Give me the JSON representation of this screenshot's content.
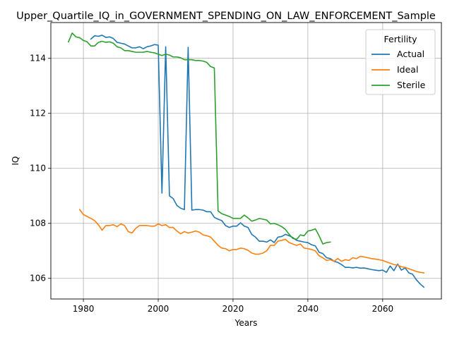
{
  "chart_data": {
    "type": "line",
    "title": "Upper_Quartile_IQ_in_GOVERNMENT_SPENDING_ON_LAW_ENFORCEMENT_Sample",
    "xlabel": "Years",
    "ylabel": "IQ",
    "xlim": [
      1971.3,
      2075.7
    ],
    "ylim": [
      105.25,
      115.3
    ],
    "x_ticks": [
      1980,
      2000,
      2020,
      2040,
      2060
    ],
    "y_ticks": [
      106,
      108,
      110,
      112,
      114
    ],
    "grid": true,
    "legend": {
      "title": "Fertility",
      "position": "top-right"
    },
    "series": [
      {
        "name": "Actual",
        "color": "#1f77b4",
        "points": [
          [
            1982,
            114.7
          ],
          [
            1983,
            114.82
          ],
          [
            1984,
            114.8
          ],
          [
            1985,
            114.84
          ],
          [
            1986,
            114.76
          ],
          [
            1987,
            114.78
          ],
          [
            1988,
            114.72
          ],
          [
            1989,
            114.58
          ],
          [
            1990,
            114.55
          ],
          [
            1991,
            114.52
          ],
          [
            1992,
            114.45
          ],
          [
            1993,
            114.38
          ],
          [
            1994,
            114.38
          ],
          [
            1995,
            114.42
          ],
          [
            1996,
            114.35
          ],
          [
            1997,
            114.42
          ],
          [
            1998,
            114.45
          ],
          [
            1999,
            114.5
          ],
          [
            2000,
            114.48
          ],
          [
            2001,
            109.1
          ],
          [
            2002,
            114.42
          ],
          [
            2003,
            109.0
          ],
          [
            2004,
            108.9
          ],
          [
            2005,
            108.65
          ],
          [
            2006,
            108.55
          ],
          [
            2007,
            108.5
          ],
          [
            2008,
            114.4
          ],
          [
            2009,
            108.48
          ],
          [
            2010,
            108.5
          ],
          [
            2011,
            108.5
          ],
          [
            2012,
            108.48
          ],
          [
            2013,
            108.42
          ],
          [
            2014,
            108.42
          ],
          [
            2015,
            108.22
          ],
          [
            2016,
            108.15
          ],
          [
            2017,
            108.1
          ],
          [
            2018,
            107.92
          ],
          [
            2019,
            107.85
          ],
          [
            2020,
            107.9
          ],
          [
            2021,
            107.9
          ],
          [
            2022,
            108.02
          ],
          [
            2023,
            107.9
          ],
          [
            2024,
            107.85
          ],
          [
            2025,
            107.6
          ],
          [
            2026,
            107.5
          ],
          [
            2027,
            107.35
          ],
          [
            2028,
            107.35
          ],
          [
            2029,
            107.32
          ],
          [
            2030,
            107.4
          ],
          [
            2031,
            107.3
          ],
          [
            2032,
            107.5
          ],
          [
            2033,
            107.52
          ],
          [
            2034,
            107.6
          ],
          [
            2035,
            107.55
          ],
          [
            2036,
            107.48
          ],
          [
            2037,
            107.38
          ],
          [
            2038,
            107.35
          ],
          [
            2039,
            107.32
          ],
          [
            2040,
            107.3
          ],
          [
            2041,
            107.22
          ],
          [
            2042,
            107.18
          ],
          [
            2043,
            106.95
          ],
          [
            2044,
            106.9
          ],
          [
            2045,
            106.75
          ],
          [
            2046,
            106.72
          ],
          [
            2047,
            106.62
          ],
          [
            2048,
            106.58
          ],
          [
            2049,
            106.5
          ],
          [
            2050,
            106.4
          ],
          [
            2051,
            106.4
          ],
          [
            2052,
            106.38
          ],
          [
            2053,
            106.4
          ],
          [
            2054,
            106.37
          ],
          [
            2055,
            106.38
          ],
          [
            2056,
            106.35
          ],
          [
            2057,
            106.32
          ],
          [
            2058,
            106.3
          ],
          [
            2059,
            106.28
          ],
          [
            2060,
            106.3
          ],
          [
            2061,
            106.22
          ],
          [
            2062,
            106.45
          ],
          [
            2063,
            106.28
          ],
          [
            2064,
            106.52
          ],
          [
            2065,
            106.3
          ],
          [
            2066,
            106.38
          ],
          [
            2067,
            106.2
          ],
          [
            2068,
            106.15
          ],
          [
            2069,
            105.95
          ],
          [
            2070,
            105.8
          ],
          [
            2071,
            105.68
          ]
        ]
      },
      {
        "name": "Ideal",
        "color": "#ff7f0e",
        "points": [
          [
            1979,
            108.5
          ],
          [
            1980,
            108.32
          ],
          [
            1981,
            108.25
          ],
          [
            1982,
            108.18
          ],
          [
            1983,
            108.1
          ],
          [
            1984,
            107.95
          ],
          [
            1985,
            107.75
          ],
          [
            1986,
            107.92
          ],
          [
            1987,
            107.92
          ],
          [
            1988,
            107.95
          ],
          [
            1989,
            107.88
          ],
          [
            1990,
            107.98
          ],
          [
            1991,
            107.92
          ],
          [
            1992,
            107.7
          ],
          [
            1993,
            107.65
          ],
          [
            1994,
            107.82
          ],
          [
            1995,
            107.92
          ],
          [
            1996,
            107.92
          ],
          [
            1997,
            107.92
          ],
          [
            1998,
            107.9
          ],
          [
            1999,
            107.9
          ],
          [
            2000,
            107.98
          ],
          [
            2001,
            107.92
          ],
          [
            2002,
            107.95
          ],
          [
            2003,
            107.85
          ],
          [
            2004,
            107.85
          ],
          [
            2005,
            107.72
          ],
          [
            2006,
            107.62
          ],
          [
            2007,
            107.7
          ],
          [
            2008,
            107.65
          ],
          [
            2009,
            107.68
          ],
          [
            2010,
            107.72
          ],
          [
            2011,
            107.68
          ],
          [
            2012,
            107.58
          ],
          [
            2013,
            107.55
          ],
          [
            2014,
            107.5
          ],
          [
            2015,
            107.35
          ],
          [
            2016,
            107.2
          ],
          [
            2017,
            107.1
          ],
          [
            2018,
            107.08
          ],
          [
            2019,
            107.0
          ],
          [
            2020,
            107.05
          ],
          [
            2021,
            107.05
          ],
          [
            2022,
            107.1
          ],
          [
            2023,
            107.08
          ],
          [
            2024,
            107.02
          ],
          [
            2025,
            106.92
          ],
          [
            2026,
            106.88
          ],
          [
            2027,
            106.88
          ],
          [
            2028,
            106.92
          ],
          [
            2029,
            107.0
          ],
          [
            2030,
            107.2
          ],
          [
            2031,
            107.2
          ],
          [
            2032,
            107.35
          ],
          [
            2033,
            107.38
          ],
          [
            2034,
            107.42
          ],
          [
            2035,
            107.3
          ],
          [
            2036,
            107.25
          ],
          [
            2037,
            107.2
          ],
          [
            2038,
            107.25
          ],
          [
            2039,
            107.1
          ],
          [
            2040,
            107.08
          ],
          [
            2041,
            107.05
          ],
          [
            2042,
            107.0
          ],
          [
            2043,
            106.82
          ],
          [
            2044,
            106.75
          ],
          [
            2045,
            106.65
          ],
          [
            2046,
            106.68
          ],
          [
            2047,
            106.62
          ],
          [
            2048,
            106.72
          ],
          [
            2049,
            106.62
          ],
          [
            2050,
            106.68
          ],
          [
            2051,
            106.65
          ],
          [
            2052,
            106.75
          ],
          [
            2053,
            106.72
          ],
          [
            2054,
            106.8
          ],
          [
            2055,
            106.78
          ],
          [
            2056,
            106.75
          ],
          [
            2057,
            106.72
          ],
          [
            2058,
            106.7
          ],
          [
            2059,
            106.68
          ],
          [
            2060,
            106.65
          ],
          [
            2061,
            106.6
          ],
          [
            2062,
            106.55
          ],
          [
            2063,
            106.5
          ],
          [
            2064,
            106.48
          ],
          [
            2065,
            106.42
          ],
          [
            2066,
            106.4
          ],
          [
            2067,
            106.35
          ],
          [
            2068,
            106.3
          ],
          [
            2069,
            106.25
          ],
          [
            2070,
            106.22
          ],
          [
            2071,
            106.2
          ]
        ]
      },
      {
        "name": "Sterile",
        "color": "#2ca02c",
        "points": [
          [
            1976,
            114.6
          ],
          [
            1977,
            114.92
          ],
          [
            1978,
            114.78
          ],
          [
            1979,
            114.75
          ],
          [
            1980,
            114.65
          ],
          [
            1981,
            114.6
          ],
          [
            1982,
            114.45
          ],
          [
            1983,
            114.45
          ],
          [
            1984,
            114.58
          ],
          [
            1985,
            114.62
          ],
          [
            1986,
            114.58
          ],
          [
            1987,
            114.6
          ],
          [
            1988,
            114.55
          ],
          [
            1989,
            114.42
          ],
          [
            1990,
            114.38
          ],
          [
            1991,
            114.28
          ],
          [
            1992,
            114.28
          ],
          [
            1993,
            114.25
          ],
          [
            1994,
            114.22
          ],
          [
            1995,
            114.22
          ],
          [
            1996,
            114.22
          ],
          [
            1997,
            114.25
          ],
          [
            1998,
            114.22
          ],
          [
            1999,
            114.2
          ],
          [
            2000,
            114.15
          ],
          [
            2001,
            114.1
          ],
          [
            2002,
            114.15
          ],
          [
            2003,
            114.12
          ],
          [
            2004,
            114.05
          ],
          [
            2005,
            114.05
          ],
          [
            2006,
            114.02
          ],
          [
            2007,
            113.95
          ],
          [
            2008,
            113.95
          ],
          [
            2009,
            113.95
          ],
          [
            2010,
            113.92
          ],
          [
            2011,
            113.92
          ],
          [
            2012,
            113.9
          ],
          [
            2013,
            113.85
          ],
          [
            2014,
            113.7
          ],
          [
            2015,
            113.65
          ],
          [
            2016,
            108.45
          ],
          [
            2017,
            108.35
          ],
          [
            2018,
            108.3
          ],
          [
            2019,
            108.25
          ],
          [
            2020,
            108.18
          ],
          [
            2021,
            108.18
          ],
          [
            2022,
            108.18
          ],
          [
            2023,
            108.3
          ],
          [
            2024,
            108.2
          ],
          [
            2025,
            108.08
          ],
          [
            2026,
            108.12
          ],
          [
            2027,
            108.18
          ],
          [
            2028,
            108.15
          ],
          [
            2029,
            108.12
          ],
          [
            2030,
            107.98
          ],
          [
            2031,
            108.0
          ],
          [
            2032,
            107.95
          ],
          [
            2033,
            107.88
          ],
          [
            2034,
            107.78
          ],
          [
            2035,
            107.6
          ],
          [
            2036,
            107.45
          ],
          [
            2037,
            107.42
          ],
          [
            2038,
            107.58
          ],
          [
            2039,
            107.55
          ],
          [
            2040,
            107.72
          ],
          [
            2041,
            107.75
          ],
          [
            2042,
            107.8
          ],
          [
            2043,
            107.55
          ],
          [
            2044,
            107.25
          ],
          [
            2045,
            107.3
          ],
          [
            2046,
            107.32
          ]
        ]
      }
    ]
  }
}
